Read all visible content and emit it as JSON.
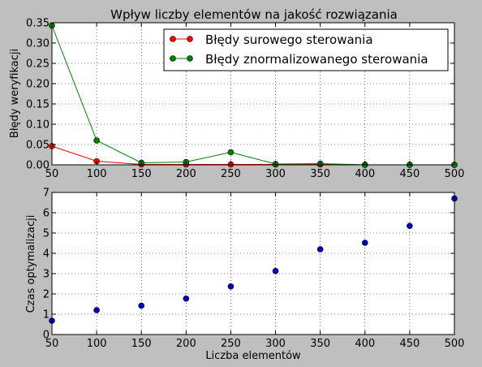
{
  "colors": {
    "figure_background": "#bfbfbf",
    "axes_background": "#ffffff",
    "raw_errors": "#ff0000",
    "normalized_errors": "#008000",
    "time_points": "#0000bf"
  },
  "chart_data": [
    {
      "type": "line",
      "title": "Wpływ liczby elementów na jakość rozwiązania",
      "xlabel": "",
      "ylabel": "Błędy weryfikacji",
      "x": [
        50,
        100,
        150,
        200,
        250,
        300,
        350,
        400,
        450,
        500
      ],
      "xlim": [
        50,
        500
      ],
      "ylim": [
        0,
        0.35
      ],
      "xticks": [
        50,
        100,
        150,
        200,
        250,
        300,
        350,
        400,
        450,
        500
      ],
      "yticks": [
        0.0,
        0.05,
        0.1,
        0.15,
        0.2,
        0.25,
        0.3,
        0.35
      ],
      "ytick_labels": [
        "0.00",
        "0.05",
        "0.10",
        "0.15",
        "0.20",
        "0.25",
        "0.30",
        "0.35"
      ],
      "grid": true,
      "legend_position": "top-right",
      "series": [
        {
          "name": "Błędy surowego sterowania",
          "color": "#ff0000",
          "values": [
            0.046,
            0.009,
            0.001,
            0.001,
            0.001,
            0.001,
            0.001,
            0.0,
            0.0,
            0.0
          ]
        },
        {
          "name": "Błędy znormalizowanego sterowania",
          "color": "#008000",
          "values": [
            0.343,
            0.06,
            0.005,
            0.007,
            0.031,
            0.002,
            0.003,
            0.0,
            0.0,
            0.0
          ]
        }
      ]
    },
    {
      "type": "scatter",
      "title": "",
      "xlabel": "Liczba elementów",
      "ylabel": "Czas optymalizacji",
      "x": [
        50,
        100,
        150,
        200,
        250,
        300,
        350,
        400,
        450,
        500
      ],
      "xlim": [
        50,
        500
      ],
      "ylim": [
        0,
        7
      ],
      "xticks": [
        50,
        100,
        150,
        200,
        250,
        300,
        350,
        400,
        450,
        500
      ],
      "yticks": [
        0,
        1,
        2,
        3,
        4,
        5,
        6,
        7
      ],
      "ytick_labels": [
        "0",
        "1",
        "2",
        "3",
        "4",
        "5",
        "6",
        "7"
      ],
      "grid": true,
      "series": [
        {
          "color": "#0000bf",
          "values": [
            0.68,
            1.2,
            1.42,
            1.77,
            2.37,
            3.13,
            4.2,
            4.52,
            5.35,
            6.7
          ]
        }
      ]
    }
  ]
}
